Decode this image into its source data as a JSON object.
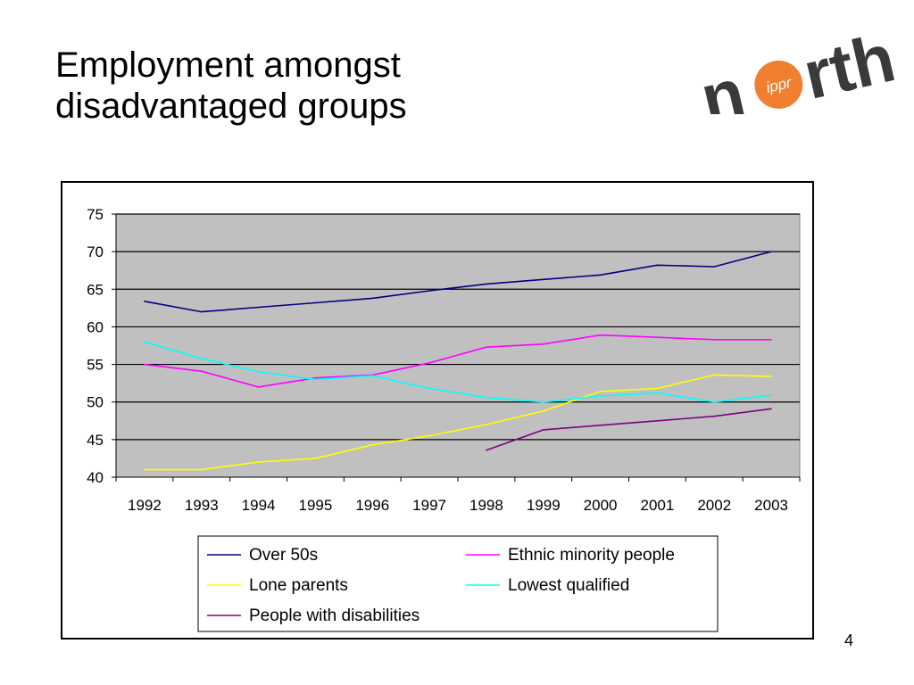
{
  "slide": {
    "title_line1": "Employment amongst",
    "title_line2": "disadvantaged groups",
    "page_number": "4"
  },
  "logo": {
    "wordmark_left": "n",
    "wordmark_right": "rth",
    "badge_text": "ippr",
    "wordmark_color": "#3a3a3a",
    "badge_color": "#f08030"
  },
  "chart_data": {
    "type": "line",
    "categories": [
      "1992",
      "1993",
      "1994",
      "1995",
      "1996",
      "1997",
      "1998",
      "1999",
      "2000",
      "2001",
      "2002",
      "2003"
    ],
    "ylim": [
      40,
      75
    ],
    "yticks": [
      40,
      45,
      50,
      55,
      60,
      65,
      70,
      75
    ],
    "plot_background": "#c0c0c0",
    "grid": true,
    "legend_position": "bottom",
    "series": [
      {
        "name": "Over 50s",
        "color": "#000080",
        "values": [
          63.4,
          62.0,
          62.6,
          63.2,
          63.8,
          64.8,
          65.7,
          66.3,
          66.9,
          68.2,
          68.0,
          70.0
        ]
      },
      {
        "name": "Ethnic minority people",
        "color": "#ff00ff",
        "values": [
          55.0,
          54.1,
          52.0,
          53.2,
          53.6,
          55.2,
          57.3,
          57.7,
          58.9,
          58.6,
          58.3,
          58.3
        ]
      },
      {
        "name": "Lone parents",
        "color": "#ffff00",
        "values": [
          41.0,
          41.0,
          42.0,
          42.5,
          44.3,
          45.5,
          47.0,
          48.8,
          51.4,
          51.8,
          53.6,
          53.4
        ]
      },
      {
        "name": "Lowest qualified",
        "color": "#00ffff",
        "values": [
          58.0,
          55.8,
          54.0,
          53.0,
          53.5,
          51.8,
          50.6,
          50.0,
          50.8,
          51.2,
          50.0,
          50.9
        ]
      },
      {
        "name": "People with disabilities",
        "color": "#800080",
        "values": [
          null,
          null,
          null,
          null,
          null,
          null,
          43.6,
          46.3,
          46.9,
          47.5,
          48.1,
          49.1
        ]
      }
    ]
  }
}
